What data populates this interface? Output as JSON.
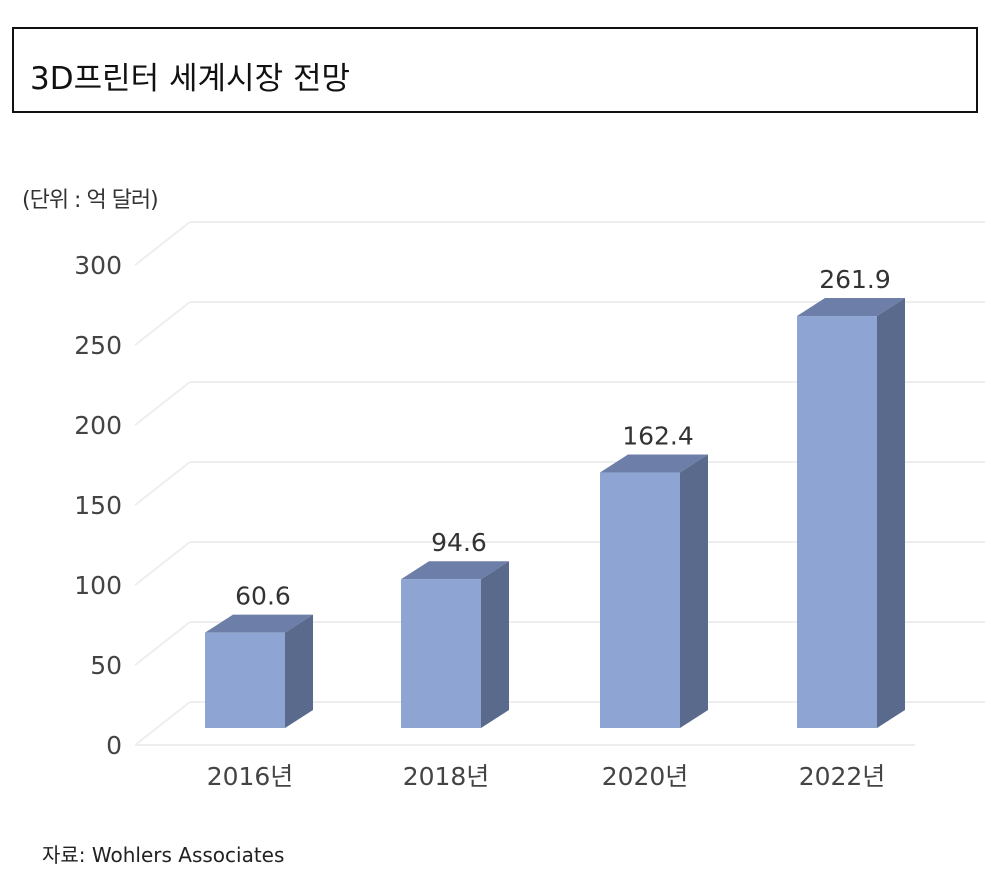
{
  "title": "3D프린터 세계시장 전망",
  "unit_label": "(단위 : 억 달러)",
  "source": "자료: Wohlers Associates",
  "colors": {
    "bar_front": "#8ea5d4",
    "bar_side": "#5a6a8c",
    "bar_top": "#6d7fa8",
    "grid": "#eeeeee"
  },
  "chart_data": {
    "type": "bar",
    "style": "3d-column",
    "categories": [
      "2016년",
      "2018년",
      "2020년",
      "2022년"
    ],
    "values": [
      60.6,
      94.6,
      162.4,
      261.9
    ],
    "data_labels": [
      "60.6",
      "94.6",
      "162.4",
      "261.9"
    ],
    "ylim": [
      0,
      300
    ],
    "yticks": [
      0,
      50,
      100,
      150,
      200,
      250,
      300
    ],
    "grid": true,
    "legend": "none"
  }
}
